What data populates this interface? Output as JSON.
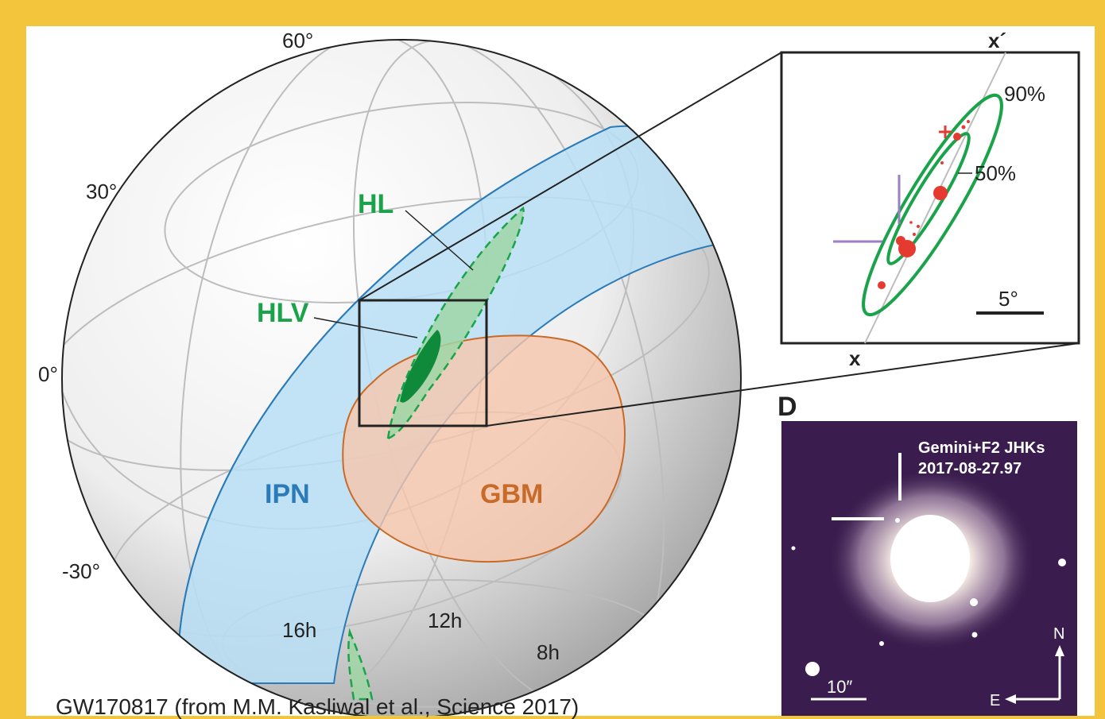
{
  "sky_map": {
    "lat_labels": {
      "l60": "60°",
      "l30": "30°",
      "l0": "0°",
      "lm30": "-30°"
    },
    "ra_labels": {
      "h16": "16h",
      "h12": "12h",
      "h8": "8h"
    },
    "regions": {
      "hl": "HL",
      "hlv": "HLV",
      "ipn": "IPN",
      "gbm": "GBM"
    },
    "colors": {
      "hl": "#1aa34a",
      "hlv": "#0e8a3a",
      "ipn": "#2b7bb9",
      "gbm": "#c86a28",
      "ipn_fill": "#b7dff5",
      "gbm_fill": "#f6c5ad"
    }
  },
  "inset": {
    "x_label": "x",
    "x_prime_label": "x´",
    "contour_90": "90%",
    "contour_50": "50%",
    "scale": "5°"
  },
  "panel_d": {
    "letter": "D",
    "title_line1": "Gemini+F2 JHKs",
    "title_line2": "2017-08-27.97",
    "compass_n": "N",
    "compass_e": "E",
    "scale": "10″"
  },
  "caption": "GW170817 (from M.M. Kasliwal et al., Science 2017)"
}
